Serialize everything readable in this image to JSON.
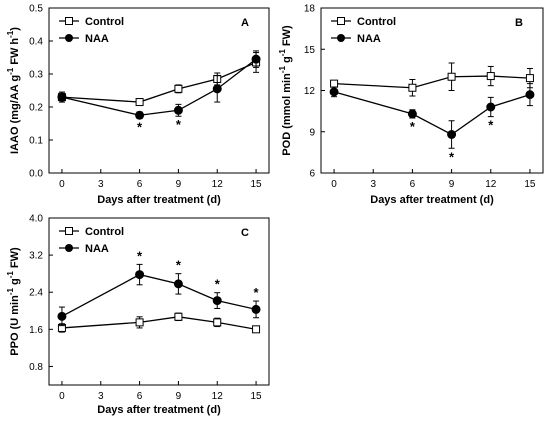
{
  "chart_data": [
    {
      "type": "line",
      "panel": "A",
      "x": [
        0,
        6,
        9,
        12,
        15
      ],
      "xticks": [
        0,
        3,
        6,
        9,
        12,
        15
      ],
      "xlabel": "Days after treatment (d)",
      "ylabel": "IAAO (mg/AA g-1 FW h-1)",
      "ylabel_parts": [
        "IAAO (mg/AA g",
        "-1",
        " FW h",
        "-1",
        ")"
      ],
      "ylim": [
        0.0,
        0.5
      ],
      "yticks": [
        "0.0",
        "0.1",
        "0.2",
        "0.3",
        "0.4",
        "0.5"
      ],
      "legend_position": "top-left",
      "series": [
        {
          "name": "Control",
          "marker": "open-square",
          "values": [
            0.23,
            0.215,
            0.255,
            0.285,
            0.335
          ],
          "errors": [
            0.015,
            0.01,
            0.012,
            0.018,
            0.03
          ]
        },
        {
          "name": "NAA",
          "marker": "filled-circle",
          "values": [
            0.23,
            0.175,
            0.19,
            0.255,
            0.345
          ],
          "errors": [
            0.015,
            0.01,
            0.018,
            0.04,
            0.025
          ]
        }
      ],
      "significance": [
        {
          "x": 6,
          "label": "*"
        },
        {
          "x": 9,
          "label": "*"
        }
      ]
    },
    {
      "type": "line",
      "panel": "B",
      "x": [
        0,
        6,
        9,
        12,
        15
      ],
      "xticks": [
        0,
        3,
        6,
        9,
        12,
        15
      ],
      "xlabel": "Days after treatment (d)",
      "ylabel": "POD (mmol min-1 g-1 FW)",
      "ylabel_parts": [
        "POD (mmol min",
        "-1",
        " g",
        "-1",
        " FW)"
      ],
      "ylim": [
        6,
        18
      ],
      "yticks": [
        "6",
        "9",
        "12",
        "15",
        "18"
      ],
      "legend_position": "top-left",
      "series": [
        {
          "name": "Control",
          "marker": "open-square",
          "values": [
            12.5,
            12.2,
            13.0,
            13.05,
            12.9
          ],
          "errors": [
            0.2,
            0.6,
            1.0,
            0.7,
            0.7
          ]
        },
        {
          "name": "NAA",
          "marker": "filled-circle",
          "values": [
            11.9,
            10.3,
            8.8,
            10.8,
            11.7
          ],
          "errors": [
            0.35,
            0.3,
            1.0,
            0.7,
            0.8
          ]
        }
      ],
      "significance": [
        {
          "x": 6,
          "label": "*"
        },
        {
          "x": 9,
          "label": "*"
        },
        {
          "x": 12,
          "label": "*"
        }
      ]
    },
    {
      "type": "line",
      "panel": "C",
      "x": [
        0,
        6,
        9,
        12,
        15
      ],
      "xticks": [
        0,
        3,
        6,
        9,
        12,
        15
      ],
      "xlabel": "Days after treatment (d)",
      "ylabel": "PPO (U min-1 g-1 FW)",
      "ylabel_parts": [
        "PPO (U min",
        "-1",
        " g",
        "-1",
        " FW)"
      ],
      "ylim": [
        0.4,
        4.0
      ],
      "yticks": [
        "0.8",
        "1.6",
        "2.4",
        "3.2",
        "4.0"
      ],
      "legend_position": "top-left",
      "series": [
        {
          "name": "Control",
          "marker": "open-square",
          "values": [
            1.63,
            1.75,
            1.87,
            1.75,
            1.6
          ],
          "errors": [
            0.09,
            0.12,
            0.08,
            0.09,
            0.06
          ]
        },
        {
          "name": "NAA",
          "marker": "filled-circle",
          "values": [
            1.88,
            2.78,
            2.58,
            2.22,
            2.03
          ],
          "errors": [
            0.2,
            0.22,
            0.22,
            0.17,
            0.18
          ]
        }
      ],
      "significance": [
        {
          "x": 6,
          "label": "*"
        },
        {
          "x": 9,
          "label": "*"
        },
        {
          "x": 12,
          "label": "*"
        },
        {
          "x": 15,
          "label": "*"
        }
      ]
    }
  ]
}
